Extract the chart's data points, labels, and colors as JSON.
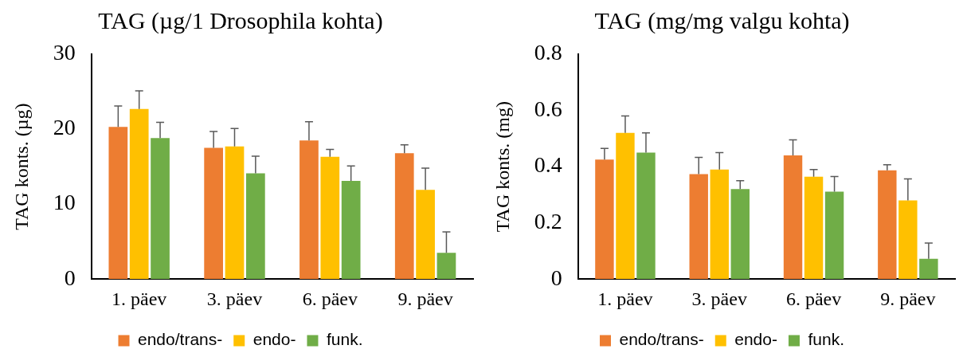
{
  "chart_data": [
    {
      "type": "bar",
      "title": "TAG (µg/1 Drosophila kohta)",
      "ylabel": "TAG konts. (µg)",
      "categories": [
        "1. päev",
        "3. päev",
        "6. päev",
        "9. päev"
      ],
      "series": [
        {
          "name": "endo/trans-",
          "color": "#ed7d31",
          "values": [
            20.3,
            17.5,
            18.5,
            16.8
          ],
          "errors": [
            [
              20.3,
              23.1
            ],
            [
              17.5,
              19.7
            ],
            [
              18.5,
              21.0
            ],
            [
              16.8,
              17.9
            ]
          ]
        },
        {
          "name": "endo-",
          "color": "#ffc000",
          "values": [
            22.7,
            17.7,
            16.3,
            11.9
          ],
          "errors": [
            [
              22.7,
              25.1
            ],
            [
              17.7,
              20.1
            ],
            [
              16.3,
              17.3
            ],
            [
              11.9,
              14.8
            ]
          ]
        },
        {
          "name": "funk.",
          "color": "#70ad47",
          "values": [
            18.8,
            14.1,
            13.1,
            3.5
          ],
          "errors": [
            [
              18.8,
              20.9
            ],
            [
              14.1,
              16.4
            ],
            [
              13.1,
              15.1
            ],
            [
              3.5,
              6.3
            ]
          ]
        }
      ],
      "ylim": [
        0,
        30
      ],
      "yticks": [
        0,
        10,
        20,
        30
      ],
      "grid": false,
      "legend": "bottom"
    },
    {
      "type": "bar",
      "title": "TAG (mg/mg valgu kohta)",
      "ylabel": "TAG konts. (mg)",
      "categories": [
        "1. päev",
        "3. päev",
        "6. päev",
        "9. päev"
      ],
      "series": [
        {
          "name": "endo/trans-",
          "color": "#ed7d31",
          "values": [
            0.425,
            0.373,
            0.44,
            0.387
          ],
          "errors": [
            [
              0.425,
              0.465
            ],
            [
              0.373,
              0.433
            ],
            [
              0.44,
              0.495
            ],
            [
              0.387,
              0.407
            ]
          ]
        },
        {
          "name": "endo-",
          "color": "#ffc000",
          "values": [
            0.52,
            0.39,
            0.364,
            0.28
          ],
          "errors": [
            [
              0.52,
              0.58
            ],
            [
              0.39,
              0.45
            ],
            [
              0.364,
              0.39
            ],
            [
              0.28,
              0.356
            ]
          ]
        },
        {
          "name": "funk.",
          "color": "#70ad47",
          "values": [
            0.45,
            0.32,
            0.311,
            0.072
          ],
          "errors": [
            [
              0.45,
              0.52
            ],
            [
              0.32,
              0.35
            ],
            [
              0.311,
              0.365
            ],
            [
              0.072,
              0.128
            ]
          ]
        }
      ],
      "ylim": [
        0,
        0.8
      ],
      "yticks": [
        0,
        0.2,
        0.4,
        0.6,
        0.8
      ],
      "grid": false,
      "legend": "bottom"
    }
  ]
}
